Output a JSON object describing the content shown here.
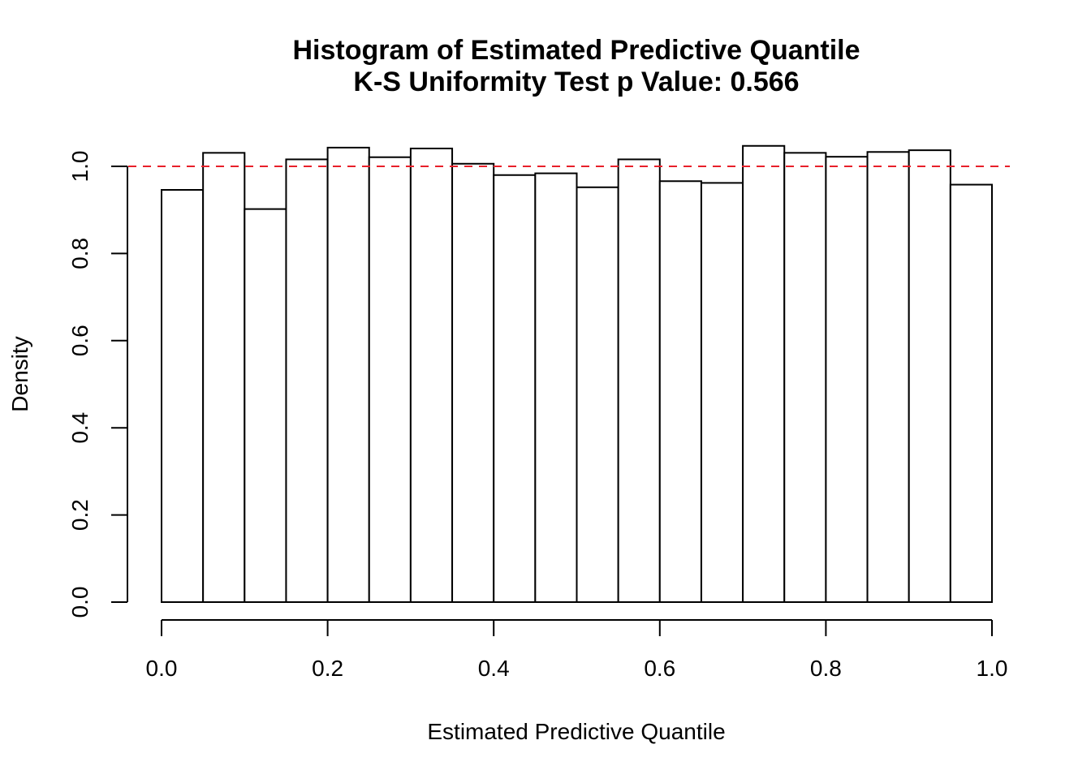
{
  "chart_data": {
    "type": "bar",
    "title": "Histogram of Estimated Predictive Quantile",
    "subtitle": "K-S Uniformity Test p Value: 0.566",
    "xlabel": "Estimated Predictive Quantile",
    "ylabel": "Density",
    "xlim": [
      0,
      1
    ],
    "ylim": [
      0,
      1.05
    ],
    "x_ticks": [
      "0.0",
      "0.2",
      "0.4",
      "0.6",
      "0.8",
      "1.0"
    ],
    "y_ticks": [
      "0.0",
      "0.2",
      "0.4",
      "0.6",
      "0.8",
      "1.0"
    ],
    "bin_edges": [
      0,
      0.05,
      0.1,
      0.15,
      0.2,
      0.25,
      0.3,
      0.35,
      0.4,
      0.45,
      0.5,
      0.55,
      0.6,
      0.65,
      0.7,
      0.75,
      0.8,
      0.85,
      0.9,
      0.95,
      1.0
    ],
    "values": [
      0.946,
      1.031,
      0.902,
      1.016,
      1.043,
      1.021,
      1.041,
      1.006,
      0.98,
      0.984,
      0.952,
      1.016,
      0.966,
      0.962,
      1.047,
      1.031,
      1.022,
      1.033,
      1.037,
      0.958
    ],
    "reference_line": {
      "y": 1.0,
      "color": "#e8202a",
      "style": "dashed"
    },
    "grid": false,
    "bar_fill": "#ffffff",
    "bar_stroke": "#000000"
  }
}
